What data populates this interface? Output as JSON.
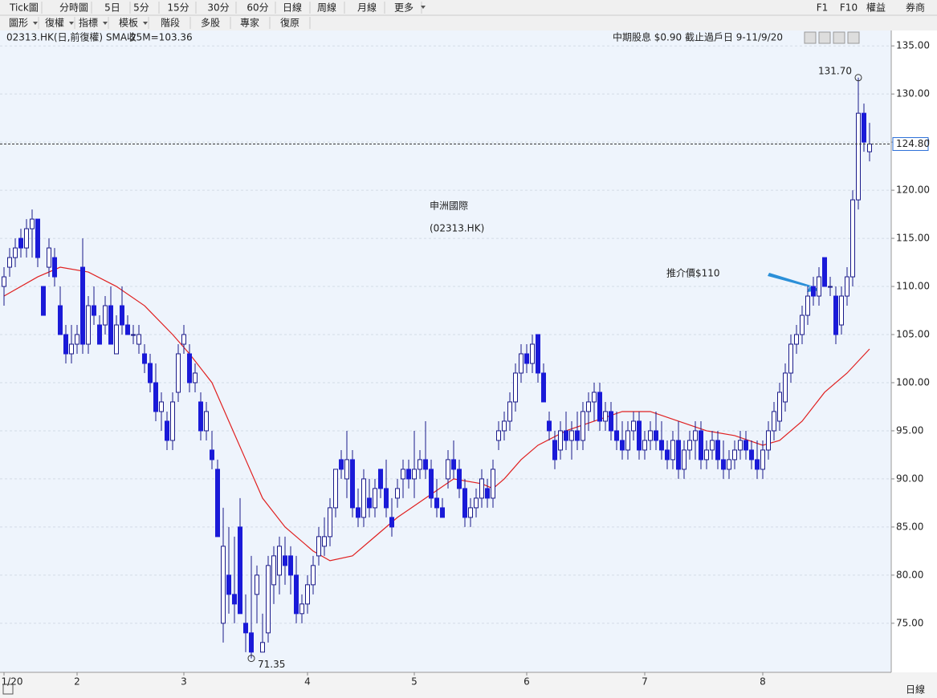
{
  "toolbar": {
    "row1": [
      "Tick圖",
      "分時圖",
      "5日",
      "5分",
      "15分",
      "30分",
      "60分",
      "日線",
      "周線",
      "月線",
      "更多"
    ],
    "right": [
      "F1",
      "F10",
      "權益",
      "券商"
    ],
    "row2": [
      "圖形",
      "復權",
      "指標",
      "模板",
      "階段",
      "多股",
      "專家",
      "復原"
    ],
    "bottom": "日線"
  },
  "chart_data": {
    "type": "candlestick",
    "legend": "02313.HK(日,前復權) SMA收",
    "sma_label": "25M=103.36",
    "dividend_note": "中期股息 $0.90 截止過戶日 9-11/9/20",
    "annotations": {
      "name": "申洲國際",
      "code": "(02313.HK)",
      "target": "推介價$110"
    },
    "high": {
      "value": 131.7,
      "label": "131.70"
    },
    "low": {
      "value": 71.35,
      "label": "71.35"
    },
    "last_price": {
      "value": 124.8,
      "label": "124.80"
    },
    "up_color": "#ffffff",
    "down_color": "#1a1ad8",
    "wick_color": "#1a1a8a",
    "sma_color": "#e02020",
    "ylim": [
      69.9,
      136.6
    ],
    "yticks": [
      {
        "value": 75,
        "label": "75.00"
      },
      {
        "value": 80,
        "label": "80.00"
      },
      {
        "value": 85,
        "label": "85.00"
      },
      {
        "value": 90,
        "label": "90.00"
      },
      {
        "value": 95,
        "label": "95.00"
      },
      {
        "value": 100,
        "label": "100.00"
      },
      {
        "value": 105,
        "label": "105.00"
      },
      {
        "value": 110,
        "label": "110.00"
      },
      {
        "value": 115,
        "label": "115.00"
      },
      {
        "value": 120,
        "label": "120.00"
      },
      {
        "value": 125,
        "label": "125.00"
      },
      {
        "value": 130,
        "label": "130.00"
      },
      {
        "value": 135,
        "label": "135.00"
      }
    ],
    "categories": [
      "1/20",
      null,
      null,
      null,
      null,
      null,
      null,
      null,
      null,
      null,
      null,
      null,
      null,
      "2",
      null,
      null,
      null,
      null,
      null,
      null,
      null,
      null,
      null,
      null,
      null,
      null,
      null,
      null,
      null,
      null,
      null,
      null,
      "3",
      null,
      null,
      null,
      null,
      null,
      null,
      null,
      null,
      null,
      null,
      null,
      null,
      null,
      null,
      null,
      null,
      null,
      null,
      null,
      null,
      null,
      "4",
      null,
      null,
      null,
      null,
      null,
      null,
      null,
      null,
      null,
      null,
      null,
      null,
      null,
      null,
      null,
      null,
      null,
      null,
      "5",
      null,
      null,
      null,
      null,
      null,
      null,
      null,
      null,
      null,
      null,
      null,
      null,
      null,
      null,
      null,
      null,
      null,
      null,
      null,
      "6",
      null,
      null,
      null,
      null,
      null,
      null,
      null,
      null,
      null,
      null,
      null,
      null,
      null,
      null,
      null,
      null,
      null,
      null,
      null,
      null,
      "7",
      null,
      null,
      null,
      null,
      null,
      null,
      null,
      null,
      null,
      null,
      null,
      null,
      null,
      null,
      null,
      null,
      null,
      null,
      null,
      null,
      "8",
      null,
      null,
      null,
      null,
      null,
      null,
      null,
      null,
      null,
      null,
      null,
      null,
      null,
      null,
      null,
      null,
      null,
      null
    ],
    "ohlc": [
      [
        110,
        112,
        108,
        111
      ],
      [
        112,
        114,
        111,
        113
      ],
      [
        113,
        115,
        112,
        114
      ],
      [
        115,
        116,
        113,
        114
      ],
      [
        114,
        117,
        113,
        116
      ],
      [
        116,
        118,
        113,
        117
      ],
      [
        117,
        117,
        112,
        113
      ],
      [
        110,
        110,
        107,
        107
      ],
      [
        112,
        115,
        111,
        114
      ],
      [
        113,
        114,
        110,
        111
      ],
      [
        108,
        110,
        105,
        105
      ],
      [
        105,
        106,
        102,
        103
      ],
      [
        103,
        106,
        102,
        104
      ],
      [
        104,
        106,
        103,
        105
      ],
      [
        112,
        115,
        103,
        104
      ],
      [
        104,
        109,
        103,
        108
      ],
      [
        108,
        110,
        106,
        107
      ],
      [
        106,
        107,
        104,
        104
      ],
      [
        106,
        109,
        105,
        108
      ],
      [
        108,
        110,
        104,
        104
      ],
      [
        103,
        107,
        103,
        106
      ],
      [
        108,
        110,
        105,
        106
      ],
      [
        106,
        107,
        105,
        105
      ],
      [
        105,
        106,
        104,
        105
      ],
      [
        104,
        106,
        103,
        105
      ],
      [
        103,
        104,
        101,
        102
      ],
      [
        102,
        103,
        99,
        100
      ],
      [
        100,
        102,
        96,
        97
      ],
      [
        97,
        99,
        95,
        98
      ],
      [
        96,
        97,
        93,
        94
      ],
      [
        94,
        99,
        93,
        98
      ],
      [
        99,
        104,
        98,
        103
      ],
      [
        104,
        106,
        103,
        105
      ],
      [
        103,
        104,
        99,
        100
      ],
      [
        100,
        102,
        99,
        101
      ],
      [
        98,
        99,
        94,
        95
      ],
      [
        95,
        98,
        94,
        97
      ],
      [
        93,
        95,
        91,
        92
      ],
      [
        91,
        92,
        84,
        84
      ],
      [
        75,
        87,
        73,
        83
      ],
      [
        80,
        85,
        76,
        78
      ],
      [
        78,
        84,
        75,
        77
      ],
      [
        85,
        88,
        76,
        76
      ],
      [
        75,
        78,
        72,
        74
      ],
      [
        74,
        82,
        71.35,
        72
      ],
      [
        78,
        81,
        75,
        80
      ],
      [
        72,
        76,
        72,
        73
      ],
      [
        74,
        82,
        73,
        81
      ],
      [
        79,
        83,
        77,
        82
      ],
      [
        80,
        84,
        78,
        83
      ],
      [
        82,
        84,
        79,
        81
      ],
      [
        82,
        83,
        78,
        80
      ],
      [
        80,
        82,
        75,
        76
      ],
      [
        76,
        78,
        75,
        77
      ],
      [
        77,
        80,
        76,
        79
      ],
      [
        79,
        82,
        78,
        81
      ],
      [
        82,
        85,
        81,
        84
      ],
      [
        83,
        86,
        82,
        84
      ],
      [
        84,
        88,
        83,
        87
      ],
      [
        87,
        91,
        86,
        91
      ],
      [
        92,
        93,
        90,
        91
      ],
      [
        90,
        95,
        88,
        92
      ],
      [
        92,
        93,
        86,
        87
      ],
      [
        87,
        89,
        85,
        86
      ],
      [
        86,
        91,
        85,
        90
      ],
      [
        88,
        90,
        86,
        87
      ],
      [
        87,
        90,
        86,
        89
      ],
      [
        91,
        91,
        88,
        89
      ],
      [
        89,
        92,
        86,
        87
      ],
      [
        86,
        88,
        84,
        85
      ],
      [
        88,
        90,
        87,
        89
      ],
      [
        90,
        92,
        88,
        91
      ],
      [
        91,
        92,
        89,
        90
      ],
      [
        90,
        95,
        88,
        91
      ],
      [
        91,
        93,
        90,
        92
      ],
      [
        92,
        96,
        90,
        91
      ],
      [
        91,
        92,
        87,
        88
      ],
      [
        88,
        90,
        86,
        87
      ],
      [
        87,
        88,
        86,
        86
      ],
      [
        90,
        93,
        89,
        92
      ],
      [
        92,
        94,
        90,
        91
      ],
      [
        91,
        92,
        88,
        89
      ],
      [
        89,
        90,
        85,
        86
      ],
      [
        86,
        88,
        85,
        87
      ],
      [
        87,
        89,
        86,
        88
      ],
      [
        88,
        91,
        87,
        90
      ],
      [
        89,
        90,
        87,
        88
      ],
      [
        88,
        92,
        87,
        91
      ],
      [
        94,
        96,
        93,
        95
      ],
      [
        95,
        97,
        94,
        96
      ],
      [
        96,
        99,
        95,
        98
      ],
      [
        98,
        102,
        97,
        101
      ],
      [
        101,
        104,
        100,
        103
      ],
      [
        103,
        104,
        101,
        102
      ],
      [
        102,
        105,
        101,
        104
      ],
      [
        105,
        105,
        100,
        101
      ],
      [
        101,
        102,
        98,
        98
      ],
      [
        96,
        97,
        94,
        95
      ],
      [
        94,
        95,
        91,
        92
      ],
      [
        93,
        96,
        92,
        95
      ],
      [
        95,
        97,
        93,
        94
      ],
      [
        94,
        96,
        92,
        95
      ],
      [
        95,
        97,
        93,
        94
      ],
      [
        94,
        98,
        93,
        97
      ],
      [
        97,
        99,
        95,
        98
      ],
      [
        98,
        100,
        96,
        99
      ],
      [
        99,
        100,
        95,
        96
      ],
      [
        96,
        98,
        95,
        97
      ],
      [
        97,
        98,
        94,
        95
      ],
      [
        95,
        97,
        93,
        94
      ],
      [
        94,
        96,
        92,
        93
      ],
      [
        93,
        96,
        92,
        95
      ],
      [
        95,
        97,
        94,
        96
      ],
      [
        96,
        97,
        92,
        93
      ],
      [
        93,
        95,
        92,
        94
      ],
      [
        94,
        96,
        93,
        95
      ],
      [
        95,
        97,
        93,
        94
      ],
      [
        94,
        96,
        92,
        93
      ],
      [
        93,
        94,
        91,
        92
      ],
      [
        92,
        95,
        91,
        94
      ],
      [
        94,
        96,
        90,
        91
      ],
      [
        91,
        94,
        90,
        93
      ],
      [
        93,
        95,
        92,
        94
      ],
      [
        94,
        96,
        92,
        95
      ],
      [
        95,
        96,
        91,
        92
      ],
      [
        92,
        94,
        91,
        93
      ],
      [
        93,
        95,
        92,
        94
      ],
      [
        94,
        95,
        91,
        92
      ],
      [
        92,
        94,
        90,
        91
      ],
      [
        91,
        93,
        90,
        92
      ],
      [
        92,
        94,
        91,
        93
      ],
      [
        93,
        95,
        92,
        94
      ],
      [
        94,
        95,
        92,
        93
      ],
      [
        93,
        94,
        91,
        92
      ],
      [
        92,
        94,
        90,
        91
      ],
      [
        91,
        94,
        90,
        93
      ],
      [
        93,
        96,
        92,
        95
      ],
      [
        95,
        98,
        94,
        97
      ],
      [
        96,
        100,
        95,
        99
      ],
      [
        98,
        102,
        97,
        101
      ],
      [
        101,
        105,
        100,
        104
      ],
      [
        104,
        106,
        103,
        105
      ],
      [
        105,
        108,
        104,
        107
      ],
      [
        107,
        110,
        106,
        109
      ],
      [
        110,
        111,
        108,
        109
      ],
      [
        109,
        112,
        108,
        111
      ],
      [
        113,
        113,
        110,
        110
      ],
      [
        110,
        111,
        109,
        110
      ],
      [
        109,
        110,
        104,
        105
      ],
      [
        106,
        110,
        105,
        109
      ],
      [
        109,
        112,
        108,
        111
      ],
      [
        111,
        120,
        110,
        119
      ],
      [
        119,
        131.7,
        118,
        128
      ],
      [
        128,
        129,
        124,
        125
      ],
      [
        124,
        127,
        123,
        124.8
      ]
    ],
    "sma": {
      "name": "SMA",
      "x": [
        0,
        6,
        10,
        15,
        20,
        25,
        30,
        33,
        37,
        40,
        43,
        46,
        50,
        55,
        58,
        62,
        66,
        70,
        75,
        80,
        85,
        87,
        89,
        92,
        95,
        100,
        105,
        110,
        115,
        120,
        125,
        130,
        135,
        138,
        142,
        146,
        150,
        154
      ],
      "values": [
        109,
        111,
        112,
        111.5,
        110,
        108,
        105,
        103,
        100,
        96,
        92,
        88,
        85,
        82.5,
        81.5,
        82,
        84,
        86,
        88,
        90,
        89.5,
        89,
        90,
        92,
        93.5,
        95,
        96,
        97,
        97,
        96,
        95,
        94.5,
        93.5,
        94,
        96,
        99,
        101,
        103.5
      ]
    }
  }
}
